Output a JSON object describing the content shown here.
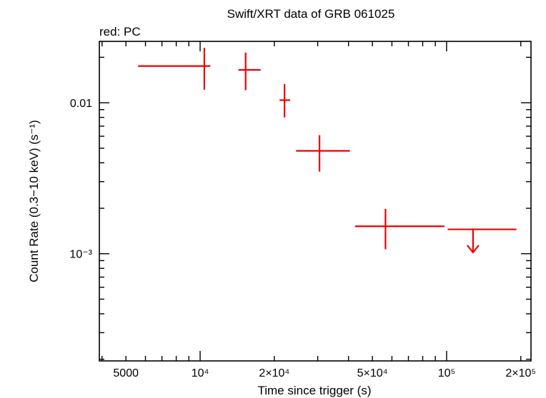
{
  "chart_data": {
    "type": "scatter",
    "title": "Swift/XRT data of GRB 061025",
    "subtitle": "red: PC",
    "xlabel": "Time since trigger (s)",
    "ylabel": "Count Rate (0.3−10 keV) (s⁻¹)",
    "xscale": "log",
    "yscale": "log",
    "xlim": [
      3900,
      220000
    ],
    "ylim": [
      0.000195,
      0.0255
    ],
    "x_tick_labels": [
      {
        "value": 5000,
        "text": "5000"
      },
      {
        "value": 10000,
        "text": "10⁴"
      },
      {
        "value": 20000,
        "text": "2×10⁴"
      },
      {
        "value": 50000,
        "text": "5×10⁴"
      },
      {
        "value": 100000,
        "text": "10⁵"
      },
      {
        "value": 200000,
        "text": "2×10⁵"
      }
    ],
    "y_tick_labels": [
      {
        "value": 0.01,
        "text": "0.01"
      },
      {
        "value": 0.001,
        "text": "10⁻³"
      }
    ],
    "series": [
      {
        "name": "PC",
        "color": "#ee0000",
        "points": [
          {
            "x": 10400,
            "x_lo": 5600,
            "x_hi": 11000,
            "y": 0.0175,
            "y_lo": 0.0122,
            "y_hi": 0.0231
          },
          {
            "x": 15300,
            "x_lo": 14300,
            "x_hi": 17600,
            "y": 0.0165,
            "y_lo": 0.0121,
            "y_hi": 0.0215
          },
          {
            "x": 22000,
            "x_lo": 21000,
            "x_hi": 23200,
            "y": 0.0104,
            "y_lo": 0.008,
            "y_hi": 0.0133
          },
          {
            "x": 30500,
            "x_lo": 24500,
            "x_hi": 40500,
            "y": 0.0048,
            "y_lo": 0.0035,
            "y_hi": 0.0061
          },
          {
            "x": 56500,
            "x_lo": 42500,
            "x_hi": 98000,
            "y": 0.00152,
            "y_lo": 0.00107,
            "y_hi": 0.00198
          }
        ],
        "upper_limits": [
          {
            "x": 128000,
            "x_lo": 101000,
            "x_hi": 192000,
            "y": 0.00145,
            "arrow_to": 0.00102
          }
        ]
      }
    ]
  }
}
